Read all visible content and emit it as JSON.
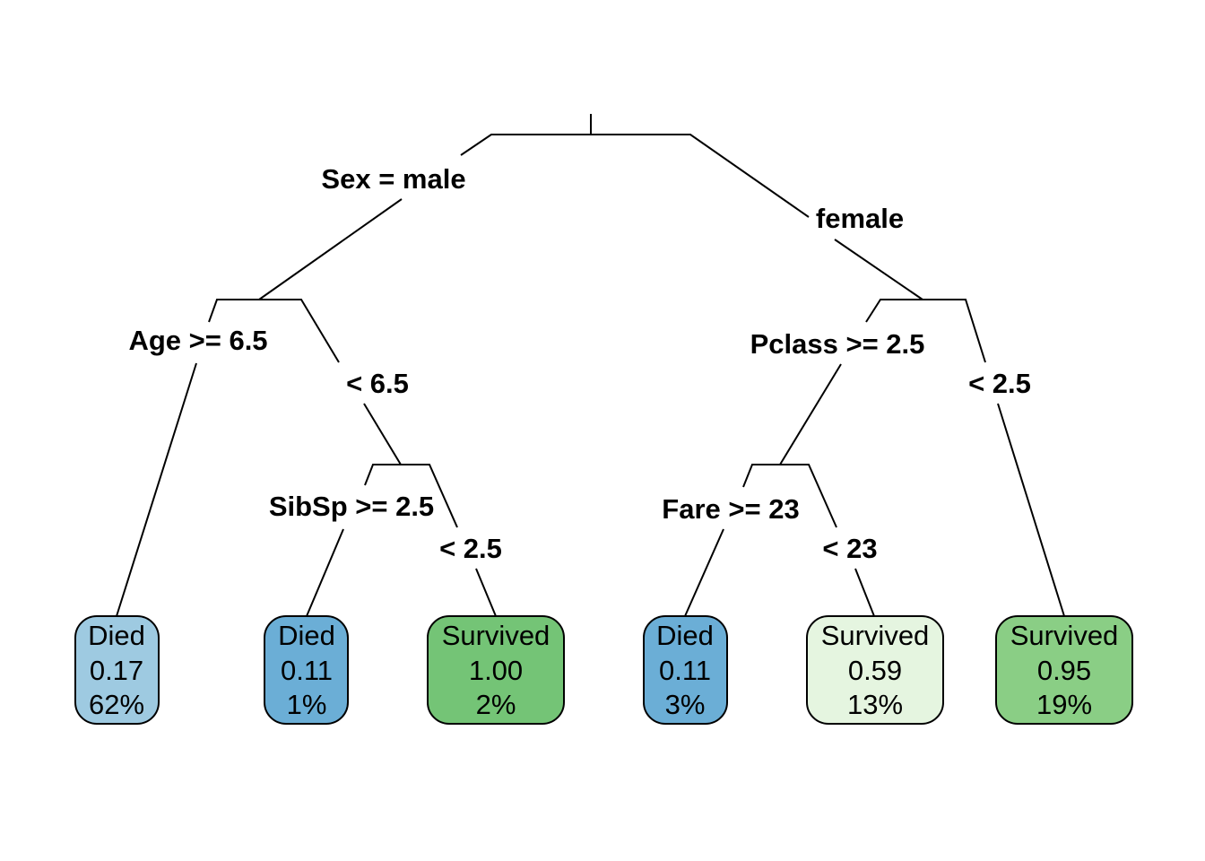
{
  "splits": {
    "sex_left": "Sex = male",
    "sex_right": "female",
    "age_left": "Age >= 6.5",
    "age_right": "< 6.5",
    "sibsp_left": "SibSp >= 2.5",
    "sibsp_right": "< 2.5",
    "pclass_left": "Pclass >= 2.5",
    "pclass_right": "< 2.5",
    "fare_left": "Fare >= 23",
    "fare_right": "< 23"
  },
  "leaves": [
    {
      "class": "Died",
      "prob": "0.17",
      "pct": "62%",
      "color": "#9ecae1"
    },
    {
      "class": "Died",
      "prob": "0.11",
      "pct": "1%",
      "color": "#6baed6"
    },
    {
      "class": "Survived",
      "prob": "1.00",
      "pct": "2%",
      "color": "#74c476"
    },
    {
      "class": "Died",
      "prob": "0.11",
      "pct": "3%",
      "color": "#6baed6"
    },
    {
      "class": "Survived",
      "prob": "0.59",
      "pct": "13%",
      "color": "#e5f5e0"
    },
    {
      "class": "Survived",
      "prob": "0.95",
      "pct": "19%",
      "color": "#8ace85"
    }
  ]
}
